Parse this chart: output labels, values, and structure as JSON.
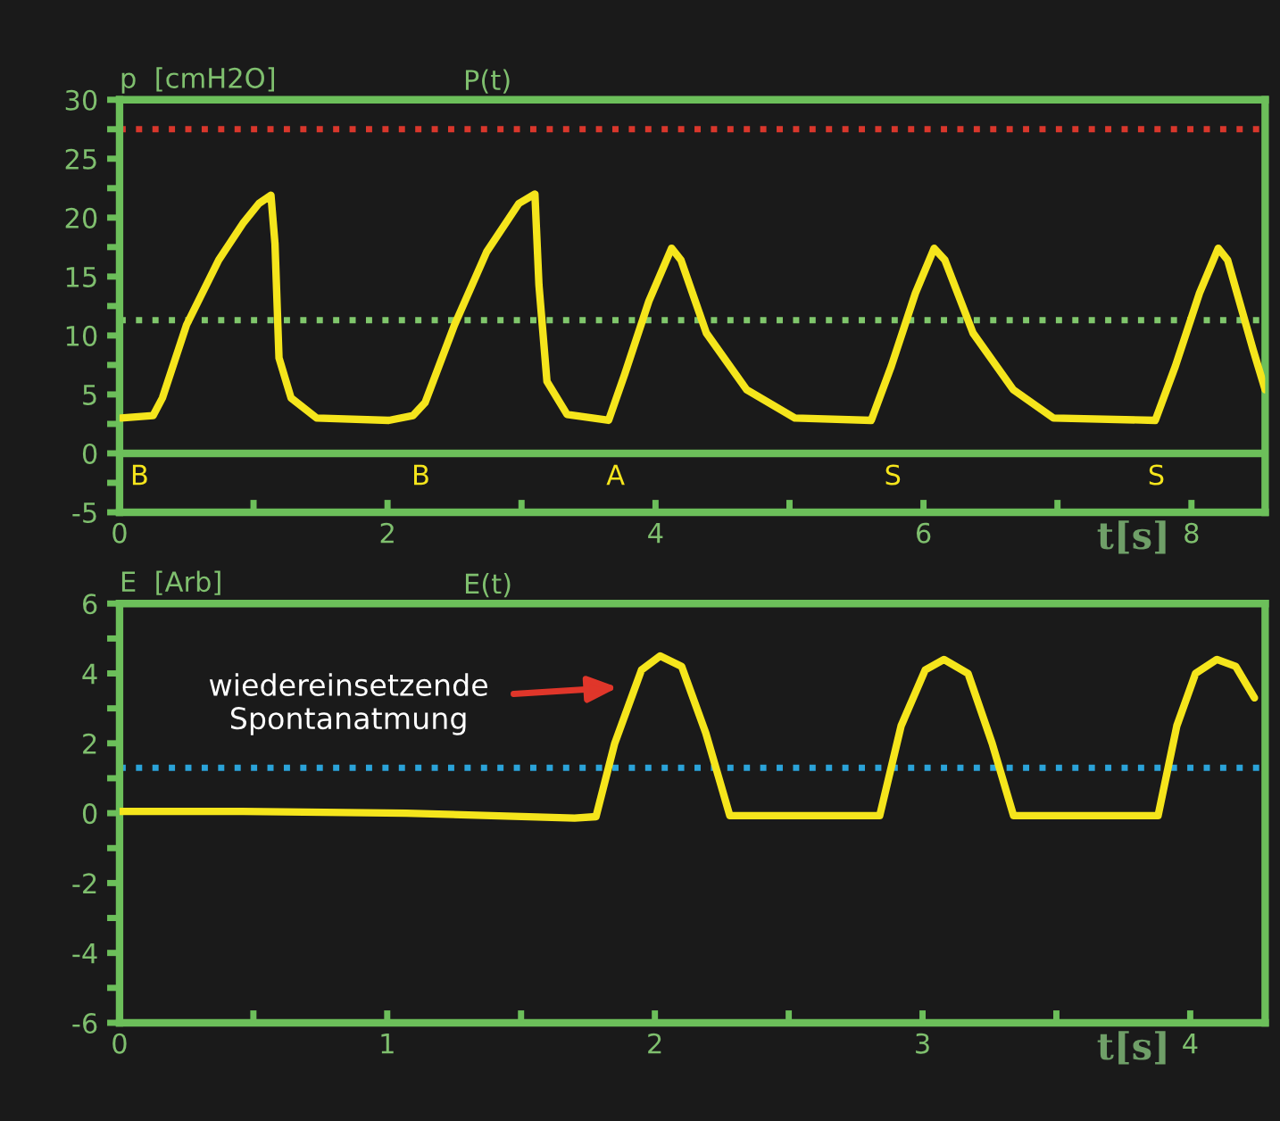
{
  "chart_data": [
    {
      "type": "line",
      "title": "P(t)",
      "ylabel": "p  [cmH2O]",
      "xlabel": "t[s]",
      "x": [
        0.01,
        0.25,
        0.32,
        0.5,
        0.74,
        0.92,
        1.04,
        1.13,
        1.16,
        1.19,
        1.28,
        1.47,
        2.01,
        2.19,
        2.28,
        2.5,
        2.74,
        2.98,
        3.1,
        3.13,
        3.19,
        3.34,
        3.65,
        3.77,
        3.95,
        4.12,
        4.19,
        4.38,
        4.68,
        5.04,
        5.61,
        5.76,
        5.94,
        6.08,
        6.16,
        6.37,
        6.67,
        6.97,
        7.73,
        7.88,
        8.06,
        8.2,
        8.27,
        8.46,
        8.55
      ],
      "series": [
        {
          "color": "#f5e51c",
          "values": [
            3.0,
            3.2,
            4.7,
            10.9,
            16.4,
            19.5,
            21.2,
            21.9,
            17.8,
            8.1,
            4.7,
            3.0,
            2.8,
            3.2,
            4.3,
            10.9,
            17.1,
            21.2,
            22.0,
            14.3,
            6.1,
            3.3,
            2.8,
            6.7,
            12.9,
            17.4,
            16.4,
            10.2,
            5.4,
            3.0,
            2.8,
            7.4,
            13.6,
            17.4,
            16.4,
            10.2,
            5.4,
            3.0,
            2.8,
            7.4,
            13.6,
            17.4,
            16.4,
            8.8,
            5.4
          ]
        }
      ],
      "xlim": [
        0,
        8.55
      ],
      "ylim": [
        -5,
        30
      ],
      "xticks": [
        0,
        {
          "value": 1,
          "label": null
        },
        2,
        {
          "value": 3,
          "label": null
        },
        4,
        {
          "value": 5,
          "label": null
        },
        6,
        {
          "value": 7,
          "label": null
        },
        8
      ],
      "yticks": [
        -5,
        {
          "value": -2.5,
          "label": null
        },
        0,
        {
          "value": 2.5,
          "label": null
        },
        5,
        {
          "value": 7.5,
          "label": null
        },
        10,
        {
          "value": 12.5,
          "label": null
        },
        15,
        {
          "value": 17.5,
          "label": null
        },
        20,
        {
          "value": 22.5,
          "label": null
        },
        25,
        {
          "value": 27.5,
          "label": null
        },
        30
      ],
      "ref_lines": [
        {
          "axis": "y",
          "value": 27.5,
          "color": "#d9372c",
          "line_style": "dotted"
        },
        {
          "axis": "y",
          "value": 11.3,
          "color": "#80c76c",
          "line_style": "dotted"
        },
        {
          "axis": "y",
          "value": 0,
          "color": "#6cbf5a",
          "line_style": "solid"
        }
      ],
      "annotations": [
        "B",
        "B",
        "A",
        "S",
        "S"
      ],
      "grid": false
    },
    {
      "type": "line",
      "title": "E(t)",
      "ylabel": "E  [Arb]",
      "xlabel": "t[s]",
      "x": [
        0,
        0.46,
        1.07,
        1.7,
        1.78,
        1.85,
        1.95,
        2.02,
        2.1,
        2.19,
        2.28,
        2.84,
        2.92,
        3.01,
        3.08,
        3.17,
        3.26,
        3.34,
        3.88,
        3.95,
        4.02,
        4.1,
        4.17,
        4.24
      ],
      "series": [
        {
          "color": "#f5e51c",
          "values": [
            0.05,
            0.05,
            0,
            -0.14,
            -0.1,
            2.0,
            4.1,
            4.5,
            4.2,
            2.3,
            -0.07,
            -0.07,
            2.5,
            4.1,
            4.4,
            4.0,
            2.0,
            -0.07,
            -0.07,
            2.5,
            4.0,
            4.4,
            4.2,
            3.3
          ]
        }
      ],
      "xlim": [
        0,
        4.28
      ],
      "ylim": [
        -6,
        6
      ],
      "xticks": [
        0,
        {
          "value": 0.5,
          "label": null
        },
        1,
        {
          "value": 1.5,
          "label": null
        },
        2,
        {
          "value": 2.5,
          "label": null
        },
        3,
        {
          "value": 3.5,
          "label": null
        },
        4
      ],
      "yticks": [
        -6,
        {
          "value": -5,
          "label": null
        },
        -4,
        {
          "value": -3,
          "label": null
        },
        -2,
        {
          "value": -1,
          "label": null
        },
        0,
        {
          "value": 1,
          "label": null
        },
        2,
        {
          "value": 3,
          "label": null
        },
        4,
        {
          "value": 5,
          "label": null
        },
        6
      ],
      "ref_lines": [
        {
          "axis": "y",
          "value": 1.3,
          "color": "#2ba3d9",
          "line_style": "dotted"
        }
      ],
      "annotations": [
        "wiedereinsetzende\nSpontanatmung"
      ],
      "grid": false
    }
  ]
}
